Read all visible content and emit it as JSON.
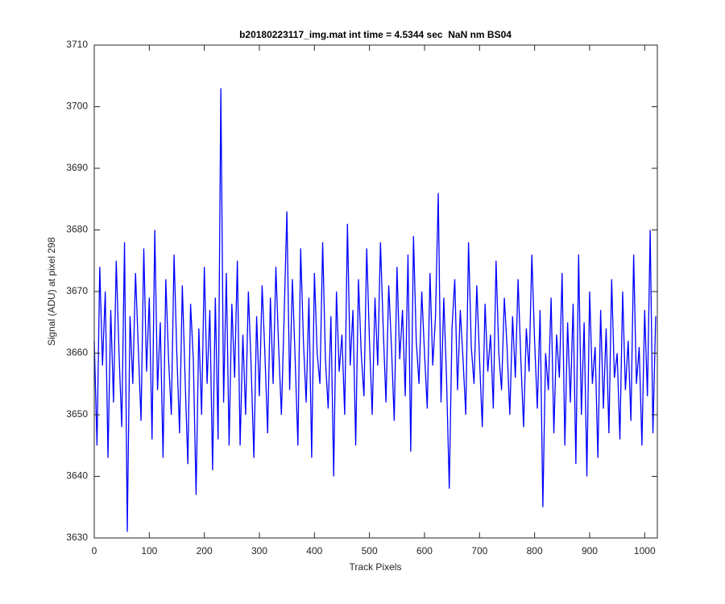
{
  "chart_data": {
    "type": "line",
    "title": "b20180223117_img.mat int time = 4.5344 sec  NaN nm BS04",
    "x_label": "Track Pixels",
    "y_label": "Signal (ADU) at pixel 298",
    "xlim": [
      0,
      1023
    ],
    "ylim": [
      3630,
      3710
    ],
    "xticks": [
      0,
      100,
      200,
      300,
      400,
      500,
      600,
      700,
      800,
      900,
      1000
    ],
    "yticks": [
      3630,
      3640,
      3650,
      3660,
      3670,
      3680,
      3690,
      3700,
      3710
    ],
    "x": [
      0,
      5,
      10,
      15,
      20,
      25,
      30,
      35,
      40,
      45,
      50,
      55,
      60,
      65,
      70,
      75,
      80,
      85,
      90,
      95,
      100,
      105,
      110,
      115,
      120,
      125,
      130,
      135,
      140,
      145,
      150,
      155,
      160,
      165,
      170,
      175,
      180,
      185,
      190,
      195,
      200,
      205,
      210,
      215,
      220,
      225,
      230,
      235,
      240,
      245,
      250,
      255,
      260,
      265,
      270,
      275,
      280,
      285,
      290,
      295,
      300,
      305,
      310,
      315,
      320,
      325,
      330,
      335,
      340,
      345,
      350,
      355,
      360,
      365,
      370,
      375,
      380,
      385,
      390,
      395,
      400,
      405,
      410,
      415,
      420,
      425,
      430,
      435,
      440,
      445,
      450,
      455,
      460,
      465,
      470,
      475,
      480,
      485,
      490,
      495,
      500,
      505,
      510,
      515,
      520,
      525,
      530,
      535,
      540,
      545,
      550,
      555,
      560,
      565,
      570,
      575,
      580,
      585,
      590,
      595,
      600,
      605,
      610,
      615,
      620,
      625,
      630,
      635,
      640,
      645,
      650,
      655,
      660,
      665,
      670,
      675,
      680,
      685,
      690,
      695,
      700,
      705,
      710,
      715,
      720,
      725,
      730,
      735,
      740,
      745,
      750,
      755,
      760,
      765,
      770,
      775,
      780,
      785,
      790,
      795,
      800,
      805,
      810,
      815,
      820,
      825,
      830,
      835,
      840,
      845,
      850,
      855,
      860,
      865,
      870,
      875,
      880,
      885,
      890,
      895,
      900,
      905,
      910,
      915,
      920,
      925,
      930,
      935,
      940,
      945,
      950,
      955,
      960,
      965,
      970,
      975,
      980,
      985,
      990,
      995,
      1000,
      1005,
      1010,
      1015,
      1020
    ],
    "series": [
      {
        "name": "pixel 298",
        "color": "#0000ff",
        "values": [
          3662,
          3645,
          3674,
          3658,
          3670,
          3643,
          3667,
          3652,
          3675,
          3660,
          3648,
          3678,
          3631,
          3666,
          3655,
          3673,
          3661,
          3649,
          3677,
          3657,
          3669,
          3646,
          3680,
          3654,
          3665,
          3643,
          3672,
          3659,
          3650,
          3676,
          3660,
          3647,
          3671,
          3656,
          3642,
          3668,
          3659,
          3637,
          3664,
          3650,
          3674,
          3655,
          3667,
          3641,
          3669,
          3646,
          3703,
          3652,
          3673,
          3645,
          3668,
          3656,
          3675,
          3645,
          3663,
          3650,
          3670,
          3658,
          3643,
          3666,
          3653,
          3671,
          3660,
          3647,
          3669,
          3655,
          3674,
          3661,
          3650,
          3666,
          3683,
          3654,
          3672,
          3659,
          3645,
          3677,
          3662,
          3652,
          3669,
          3643,
          3673,
          3660,
          3655,
          3678,
          3659,
          3651,
          3666,
          3640,
          3670,
          3657,
          3663,
          3650,
          3681,
          3658,
          3667,
          3645,
          3672,
          3660,
          3653,
          3677,
          3662,
          3650,
          3669,
          3658,
          3678,
          3664,
          3652,
          3671,
          3661,
          3649,
          3674,
          3659,
          3667,
          3653,
          3676,
          3644,
          3679,
          3662,
          3655,
          3670,
          3660,
          3651,
          3673,
          3658,
          3666,
          3686,
          3652,
          3669,
          3656,
          3638,
          3664,
          3672,
          3654,
          3667,
          3659,
          3650,
          3678,
          3661,
          3655,
          3671,
          3659,
          3648,
          3668,
          3657,
          3663,
          3651,
          3675,
          3660,
          3654,
          3669,
          3661,
          3650,
          3666,
          3656,
          3672,
          3659,
          3648,
          3664,
          3657,
          3676,
          3662,
          3651,
          3667,
          3635,
          3660,
          3654,
          3669,
          3647,
          3663,
          3656,
          3673,
          3645,
          3665,
          3652,
          3668,
          3642,
          3676,
          3650,
          3665,
          3640,
          3670,
          3655,
          3661,
          3643,
          3667,
          3651,
          3664,
          3647,
          3672,
          3656,
          3660,
          3646,
          3670,
          3654,
          3662,
          3649,
          3676,
          3655,
          3661,
          3645,
          3667,
          3653,
          3680,
          3647,
          3666
        ]
      }
    ]
  }
}
